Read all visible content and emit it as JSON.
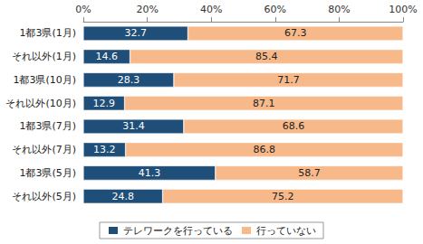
{
  "chart_data": {
    "type": "bar",
    "orientation": "horizontal",
    "stacked": true,
    "data_labels": true,
    "grid": false,
    "legend": "bottom",
    "categories": [
      "1都3県(1月)",
      "それ以外(1月)",
      "1都3県(10月)",
      "それ以外(10月)",
      "1都3県(7月)",
      "それ以外(7月)",
      "1都3県(5月)",
      "それ以外(5月)"
    ],
    "xlim": [
      0,
      100
    ],
    "xticks": [
      {
        "value": 0,
        "label": "0%"
      },
      {
        "value": 20,
        "label": "20%"
      },
      {
        "value": 40,
        "label": "40%"
      },
      {
        "value": 60,
        "label": "60%"
      },
      {
        "value": 80,
        "label": "80%"
      },
      {
        "value": 100,
        "label": "100%"
      }
    ],
    "series": [
      {
        "name": "テレワークを行っている",
        "color": "#1f4e79",
        "values": [
          32.7,
          14.6,
          28.3,
          12.9,
          31.4,
          13.2,
          41.3,
          24.8
        ]
      },
      {
        "name": "行っていない",
        "color": "#f8b98a",
        "values": [
          67.3,
          85.4,
          71.7,
          87.1,
          68.6,
          86.8,
          58.7,
          75.2
        ]
      }
    ]
  }
}
